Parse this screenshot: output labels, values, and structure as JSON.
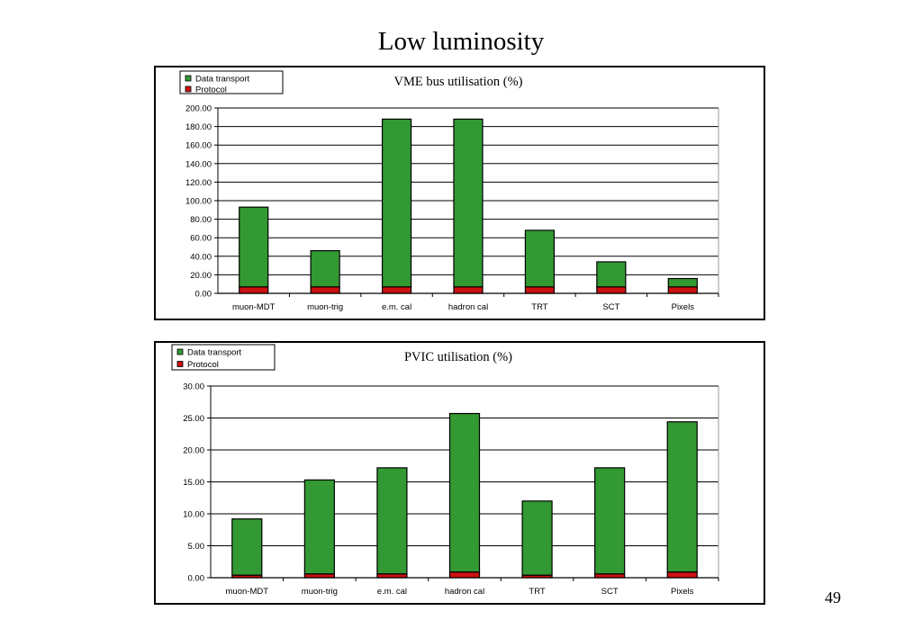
{
  "slide": {
    "title": "Low luminosity",
    "page_number": "49"
  },
  "colors": {
    "data_transport": "#339933",
    "protocol": "#cc1111",
    "frame": "#000000",
    "grid": "#000000"
  },
  "chart_data": [
    {
      "type": "bar",
      "stacked": true,
      "title": "VME bus utilisation (%)",
      "xlabel": "",
      "ylabel": "",
      "categories": [
        "muon-MDT",
        "muon-trig",
        "e.m. cal",
        "hadron cal",
        "TRT",
        "SCT",
        "Pixels"
      ],
      "series": [
        {
          "name": "Protocol",
          "color": "#cc1111",
          "values": [
            7,
            7,
            7,
            7,
            7,
            7,
            7
          ]
        },
        {
          "name": "Data transport",
          "color": "#339933",
          "values": [
            86,
            39,
            181,
            181,
            61,
            27,
            9
          ]
        }
      ],
      "ylim": [
        0,
        200
      ],
      "yticks": [
        "0.00",
        "20.00",
        "40.00",
        "60.00",
        "80.00",
        "100.00",
        "120.00",
        "140.00",
        "160.00",
        "180.00",
        "200.00"
      ],
      "grid": true,
      "legend": "top-left"
    },
    {
      "type": "bar",
      "stacked": true,
      "title": "PVIC utilisation (%)",
      "xlabel": "",
      "ylabel": "",
      "categories": [
        "muon-MDT",
        "muon-trig",
        "e.m. cal",
        "hadron cal",
        "TRT",
        "SCT",
        "Pixels"
      ],
      "series": [
        {
          "name": "Protocol",
          "color": "#cc1111",
          "values": [
            0.4,
            0.6,
            0.6,
            0.9,
            0.4,
            0.6,
            0.9
          ]
        },
        {
          "name": "Data transport",
          "color": "#339933",
          "values": [
            8.8,
            14.7,
            16.6,
            24.8,
            11.6,
            16.6,
            23.5
          ]
        }
      ],
      "ylim": [
        0,
        30
      ],
      "yticks": [
        "0.00",
        "5.00",
        "10.00",
        "15.00",
        "20.00",
        "25.00",
        "30.00"
      ],
      "grid": true,
      "legend": "top-left"
    }
  ]
}
